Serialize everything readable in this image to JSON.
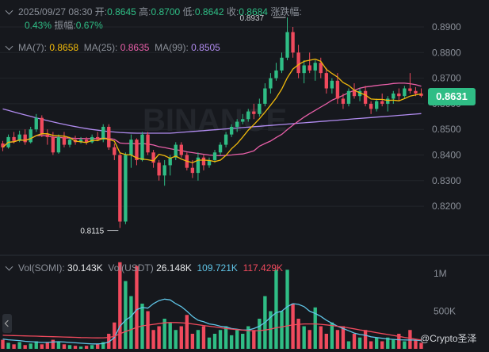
{
  "header": {
    "datetime": "2025/09/27 08:30",
    "open_label": "开:",
    "open": "0.8645",
    "high_label": "高:",
    "high": "0.8700",
    "low_label": "低:",
    "low": "0.8642",
    "close_label": "收:",
    "close": "0.8684",
    "change_label": "涨跌幅:",
    "change": "0.43%",
    "amplitude_label": "振幅:",
    "amplitude": "0.67%"
  },
  "ma": {
    "ma7_label": "MA(7):",
    "ma7": "0.8658",
    "ma25_label": "MA(25):",
    "ma25": "0.8635",
    "ma99_label": "MA(99):",
    "ma99": "0.8505"
  },
  "volume": {
    "label1": "Vol(SOMI):",
    "v1": "30.143K",
    "label2": "Vol(USDT)",
    "v2": "26.148K",
    "v3": "109.721K",
    "v4": "117.429K"
  },
  "current_price": "0.8631",
  "watermark": "@Crypto圣泽",
  "colors": {
    "up": "#2fbd85",
    "down": "#f04a5d",
    "ma7": "#f0b90b",
    "ma25": "#e85fa8",
    "ma99": "#b18cf0"
  },
  "chart_data": {
    "type": "candlestick",
    "y_ticks": [
      0.82,
      0.83,
      0.84,
      0.85,
      0.86,
      0.87,
      0.88,
      0.89
    ],
    "y_tick_labels": [
      "0.8200",
      "0.8300",
      "0.8400",
      "0.8500",
      "0.8600",
      "0.8700",
      "0.8800",
      "0.8900"
    ],
    "vol_tick_labels": [
      "1M",
      "500K"
    ],
    "vol_ticks": [
      1000000,
      500000
    ],
    "annotations": {
      "high": "0.8937",
      "low": "0.8115"
    },
    "candles": [
      [
        0.8445,
        0.8455,
        0.8415,
        0.843
      ],
      [
        0.843,
        0.848,
        0.8425,
        0.847
      ],
      [
        0.847,
        0.849,
        0.8445,
        0.8455
      ],
      [
        0.8455,
        0.8495,
        0.845,
        0.848
      ],
      [
        0.848,
        0.85,
        0.844,
        0.845
      ],
      [
        0.845,
        0.851,
        0.8445,
        0.85
      ],
      [
        0.85,
        0.856,
        0.849,
        0.8545
      ],
      [
        0.8545,
        0.8555,
        0.847,
        0.848
      ],
      [
        0.848,
        0.85,
        0.844,
        0.847
      ],
      [
        0.847,
        0.849,
        0.84,
        0.841
      ],
      [
        0.841,
        0.848,
        0.8405,
        0.847
      ],
      [
        0.847,
        0.849,
        0.843,
        0.844
      ],
      [
        0.844,
        0.847,
        0.843,
        0.846
      ],
      [
        0.846,
        0.8475,
        0.844,
        0.845
      ],
      [
        0.845,
        0.847,
        0.8445,
        0.846
      ],
      [
        0.846,
        0.847,
        0.844,
        0.845
      ],
      [
        0.845,
        0.848,
        0.8445,
        0.847
      ],
      [
        0.847,
        0.849,
        0.8455,
        0.846
      ],
      [
        0.846,
        0.852,
        0.845,
        0.851
      ],
      [
        0.851,
        0.852,
        0.842,
        0.843
      ],
      [
        0.843,
        0.8445,
        0.838,
        0.84
      ],
      [
        0.84,
        0.841,
        0.8115,
        0.814
      ],
      [
        0.814,
        0.841,
        0.813,
        0.84
      ],
      [
        0.84,
        0.848,
        0.835,
        0.846
      ],
      [
        0.846,
        0.8465,
        0.836,
        0.838
      ],
      [
        0.838,
        0.849,
        0.8375,
        0.848
      ],
      [
        0.848,
        0.849,
        0.84,
        0.841
      ],
      [
        0.841,
        0.842,
        0.835,
        0.837
      ],
      [
        0.837,
        0.838,
        0.83,
        0.832
      ],
      [
        0.832,
        0.838,
        0.828,
        0.836
      ],
      [
        0.836,
        0.84,
        0.832,
        0.839
      ],
      [
        0.839,
        0.845,
        0.838,
        0.844
      ],
      [
        0.844,
        0.845,
        0.839,
        0.84
      ],
      [
        0.84,
        0.841,
        0.834,
        0.835
      ],
      [
        0.835,
        0.838,
        0.831,
        0.833
      ],
      [
        0.833,
        0.841,
        0.83,
        0.839
      ],
      [
        0.839,
        0.84,
        0.834,
        0.836
      ],
      [
        0.836,
        0.839,
        0.835,
        0.838
      ],
      [
        0.838,
        0.842,
        0.837,
        0.841
      ],
      [
        0.841,
        0.845,
        0.84,
        0.844
      ],
      [
        0.844,
        0.849,
        0.843,
        0.848
      ],
      [
        0.848,
        0.852,
        0.847,
        0.851
      ],
      [
        0.851,
        0.854,
        0.849,
        0.853
      ],
      [
        0.853,
        0.856,
        0.852,
        0.854
      ],
      [
        0.854,
        0.858,
        0.853,
        0.857
      ],
      [
        0.857,
        0.86,
        0.854,
        0.856
      ],
      [
        0.856,
        0.862,
        0.855,
        0.86
      ],
      [
        0.86,
        0.868,
        0.859,
        0.866
      ],
      [
        0.866,
        0.872,
        0.864,
        0.87
      ],
      [
        0.87,
        0.876,
        0.869,
        0.873
      ],
      [
        0.873,
        0.88,
        0.872,
        0.878
      ],
      [
        0.878,
        0.8937,
        0.877,
        0.888
      ],
      [
        0.888,
        0.89,
        0.878,
        0.88
      ],
      [
        0.88,
        0.883,
        0.87,
        0.872
      ],
      [
        0.872,
        0.877,
        0.868,
        0.875
      ],
      [
        0.875,
        0.88,
        0.872,
        0.873
      ],
      [
        0.873,
        0.877,
        0.869,
        0.876
      ],
      [
        0.876,
        0.878,
        0.87,
        0.872
      ],
      [
        0.872,
        0.874,
        0.864,
        0.866
      ],
      [
        0.866,
        0.87,
        0.864,
        0.869
      ],
      [
        0.869,
        0.872,
        0.86,
        0.862
      ],
      [
        0.862,
        0.864,
        0.858,
        0.86
      ],
      [
        0.86,
        0.866,
        0.859,
        0.865
      ],
      [
        0.865,
        0.868,
        0.862,
        0.863
      ],
      [
        0.863,
        0.866,
        0.861,
        0.865
      ],
      [
        0.865,
        0.867,
        0.859,
        0.86
      ],
      [
        0.86,
        0.861,
        0.856,
        0.858
      ],
      [
        0.858,
        0.862,
        0.857,
        0.861
      ],
      [
        0.861,
        0.864,
        0.859,
        0.86
      ],
      [
        0.86,
        0.863,
        0.857,
        0.862
      ],
      [
        0.862,
        0.865,
        0.86,
        0.864
      ],
      [
        0.864,
        0.866,
        0.861,
        0.863
      ],
      [
        0.863,
        0.867,
        0.862,
        0.866
      ],
      [
        0.866,
        0.872,
        0.864,
        0.865
      ],
      [
        0.865,
        0.8665,
        0.863,
        0.864
      ],
      [
        0.864,
        0.866,
        0.8625,
        0.8631
      ]
    ],
    "volume_values": [
      120000,
      80000,
      60000,
      90000,
      50000,
      70000,
      100000,
      60000,
      80000,
      120000,
      90000,
      60000,
      50000,
      40000,
      30000,
      40000,
      50000,
      60000,
      90000,
      200000,
      350000,
      1150000,
      900000,
      700000,
      1100000,
      600000,
      500000,
      250000,
      300000,
      400000,
      350000,
      250000,
      300000,
      450000,
      200000,
      250000,
      300000,
      150000,
      200000,
      250000,
      300000,
      180000,
      250000,
      200000,
      300000,
      250000,
      400000,
      700000,
      500000,
      1050000,
      500000,
      1050000,
      600000,
      400000,
      300000,
      250000,
      550000,
      300000,
      200000,
      350000,
      250000,
      300000,
      100000,
      200000,
      150000,
      250000,
      100000,
      150000,
      100000,
      150000,
      120000,
      200000,
      100000,
      250000,
      120000,
      80000
    ],
    "ma_vol1": [
      130000,
      120000,
      115000,
      110000,
      100000,
      95000,
      90000,
      85000,
      85000,
      90000,
      95000,
      90000,
      85000,
      80000,
      75000,
      70000,
      65000,
      65000,
      70000,
      90000,
      150000,
      300000,
      380000,
      430000,
      520000,
      550000,
      540000,
      600000,
      640000,
      660000,
      650000,
      600000,
      560000,
      500000,
      430000,
      380000,
      360000,
      330000,
      320000,
      300000,
      290000,
      270000,
      260000,
      250000,
      250000,
      270000,
      300000,
      350000,
      420000,
      480000,
      500000,
      560000,
      600000,
      590000,
      560000,
      500000,
      470000,
      430000,
      380000,
      340000,
      300000,
      270000,
      240000,
      210000,
      190000,
      180000,
      160000,
      150000,
      140000,
      130000,
      125000,
      120000,
      118000,
      117000,
      116000,
      110000
    ],
    "ma_vol2": [
      180000,
      178000,
      176000,
      174000,
      172000,
      170000,
      168000,
      165000,
      163000,
      161000,
      159000,
      157000,
      155000,
      153000,
      150000,
      148000,
      146000,
      145000,
      146000,
      152000,
      165000,
      200000,
      230000,
      255000,
      285000,
      305000,
      315000,
      325000,
      335000,
      345000,
      350000,
      350000,
      345000,
      340000,
      330000,
      320000,
      310000,
      300000,
      290000,
      280000,
      270000,
      262000,
      255000,
      248000,
      242000,
      240000,
      242000,
      250000,
      262000,
      280000,
      290000,
      305000,
      318000,
      325000,
      330000,
      330000,
      330000,
      325000,
      318000,
      310000,
      300000,
      290000,
      278000,
      265000,
      252000,
      240000,
      228000,
      215000,
      202000,
      190000,
      178000,
      165000,
      152000,
      140000,
      128000,
      117000
    ]
  }
}
